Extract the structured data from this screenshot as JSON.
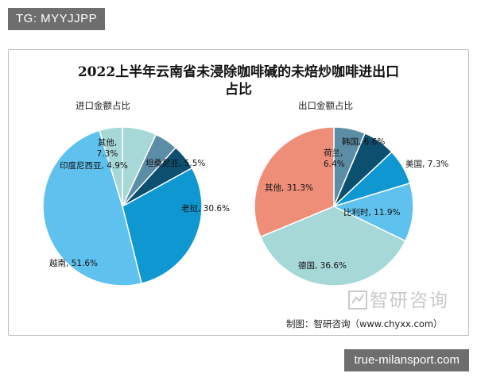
{
  "overlay": {
    "tag": "TG: MYYJJPP",
    "domain": "true-milansport.com"
  },
  "figure": {
    "title_line1": "2022上半年云南省未浸除咖啡碱的未焙炒咖啡进出口",
    "title_line2": "占比",
    "source": "制图：智研咨询（www.chyxx.com）",
    "watermark": "智研咨询"
  },
  "chart_data": [
    {
      "type": "pie",
      "title": "进口金额占比",
      "slices": [
        {
          "label": "其他",
          "value": 7.3,
          "display": "其他,\n7.3%",
          "color": "#a7d8d8"
        },
        {
          "label": "",
          "value": 5.0,
          "display": "",
          "color": "#5b8da6"
        },
        {
          "label": "坦桑尼亚",
          "value": 5.5,
          "display": "坦桑尼亚, 5.5%",
          "color": "#0c4f6f"
        },
        {
          "label": "老挝",
          "value": 30.6,
          "display": "老挝, 30.6%",
          "color": "#0f97d2"
        },
        {
          "label": "越南",
          "value": 51.6,
          "display": "越南, 51.6%",
          "color": "#5fc1ed"
        },
        {
          "label": "印度尼西亚",
          "value": 4.9,
          "display": "印度尼西亚, 4.9%",
          "color": "#a7d8d8"
        }
      ]
    },
    {
      "type": "pie",
      "title": "出口金额占比",
      "slices": [
        {
          "label": "荷兰",
          "value": 6.4,
          "display": "荷兰,\n6.4%",
          "color": "#5b8da6"
        },
        {
          "label": "韩国",
          "value": 6.6,
          "display": "韩国, 6.6%",
          "color": "#0c4f6f"
        },
        {
          "label": "美国",
          "value": 7.3,
          "display": "美国, 7.3%",
          "color": "#0f97d2"
        },
        {
          "label": "比利时",
          "value": 11.9,
          "display": "比利时, 11.9%",
          "color": "#5fc1ed"
        },
        {
          "label": "德国",
          "value": 36.6,
          "display": "德国, 36.6%",
          "color": "#a7d8d8"
        },
        {
          "label": "其他",
          "value": 31.3,
          "display": "其他, 31.3%",
          "color": "#ef8e78"
        }
      ]
    }
  ]
}
